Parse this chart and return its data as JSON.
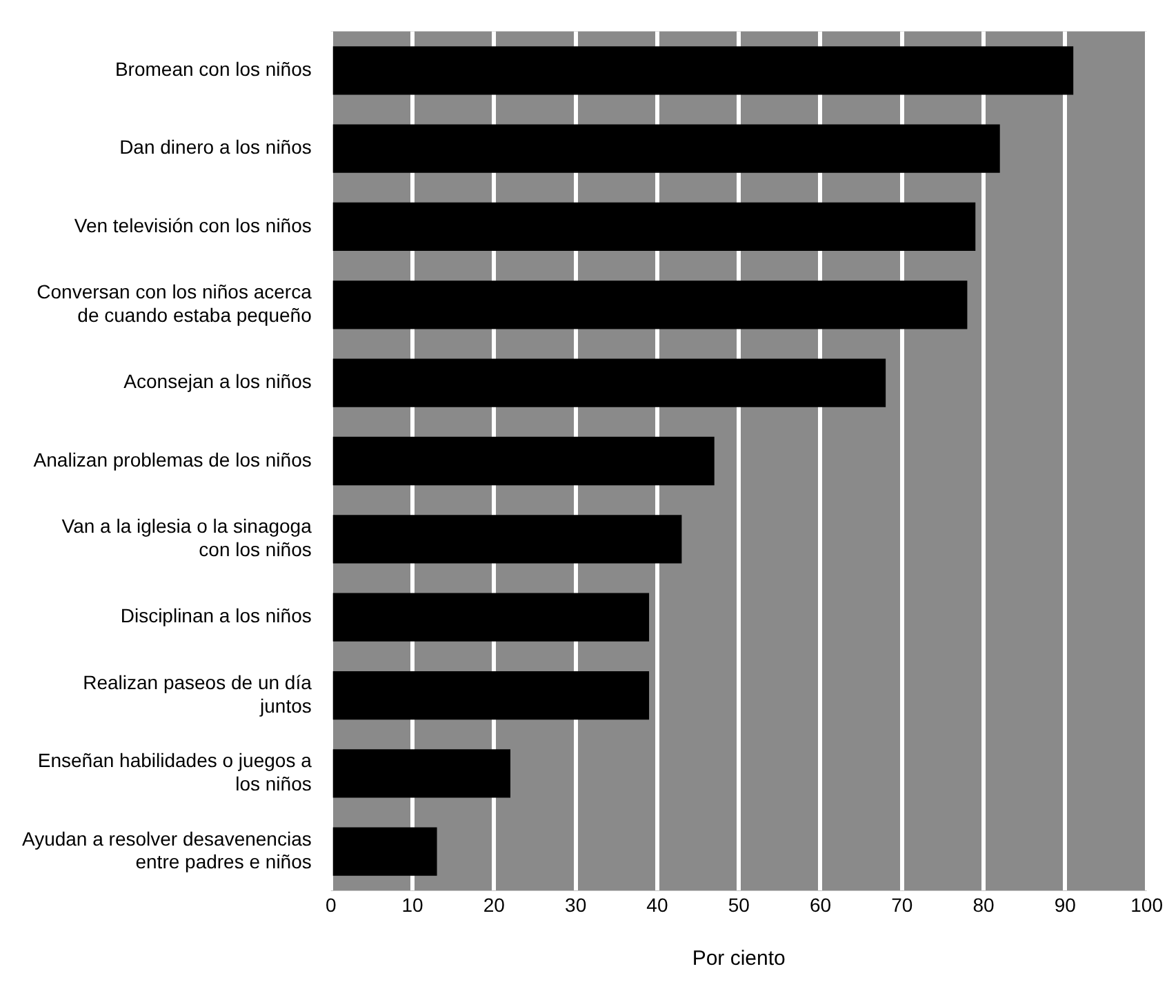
{
  "chart_data": {
    "type": "bar",
    "orientation": "horizontal",
    "xlabel": "Por ciento",
    "categories": [
      "Bromean con los niños",
      "Dan dinero a los niños",
      "Ven televisión con los niños",
      "Conversan con los niños acerca de cuando estaba pequeño",
      "Aconsejan a los niños",
      "Analizan problemas de los niños",
      "Van a la iglesia o la sinagoga con los niños",
      "Disciplinan a los niños",
      "Realizan paseos de un día juntos",
      "Enseñan habilidades o juegos a los niños",
      "Ayudan a resolver desavenencias entre padres e niños"
    ],
    "values": [
      91,
      82,
      79,
      78,
      68,
      47,
      43,
      39,
      39,
      22,
      13
    ],
    "color": "#000000",
    "xlim": [
      0,
      100
    ],
    "xticks": [
      0,
      10,
      20,
      30,
      40,
      50,
      60,
      70,
      80,
      90,
      100
    ],
    "grid": "x"
  }
}
